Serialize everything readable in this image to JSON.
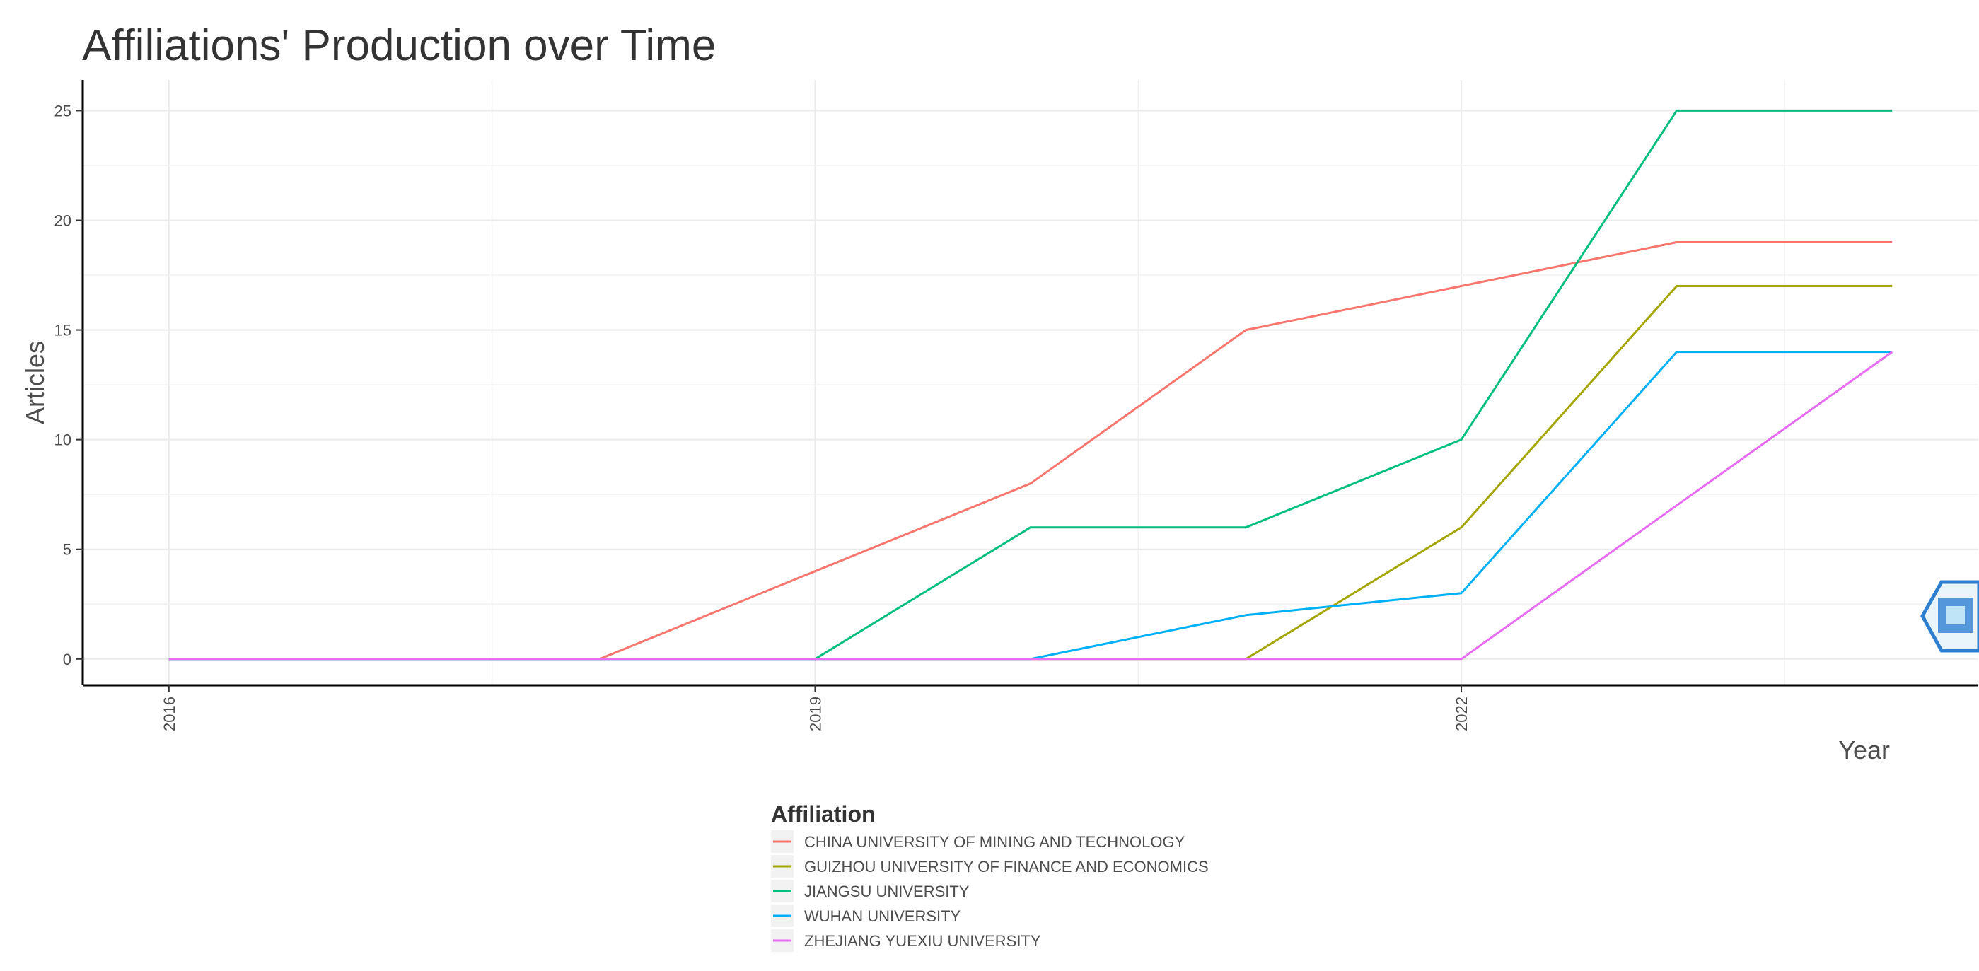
{
  "chart_data": {
    "type": "line",
    "title": "Affiliations' Production over Time",
    "xlabel": "Year",
    "ylabel": "Articles",
    "x": [
      2016,
      2017,
      2018,
      2019,
      2020,
      2021,
      2022,
      2023,
      2024
    ],
    "x_ticks": [
      "2016",
      "2019",
      "2022"
    ],
    "y_ticks": [
      "0",
      "5",
      "10",
      "15",
      "20",
      "25"
    ],
    "xlim": [
      2015.6,
      2024.4
    ],
    "ylim": [
      -1.2,
      26.4
    ],
    "grid": true,
    "legend_placement": "bottom",
    "legend_title": "Affiliation",
    "series": [
      {
        "name": "CHINA UNIVERSITY OF MINING AND TECHNOLOGY",
        "color": "#F8766D",
        "values": [
          0,
          0,
          0,
          4,
          8,
          15,
          17,
          19,
          19
        ]
      },
      {
        "name": "GUIZHOU UNIVERSITY OF FINANCE AND ECONOMICS",
        "color": "#A3A500",
        "values": [
          0,
          0,
          0,
          0,
          0,
          0,
          6,
          17,
          17
        ]
      },
      {
        "name": "JIANGSU UNIVERSITY",
        "color": "#00BF7D",
        "values": [
          0,
          0,
          0,
          0,
          6,
          6,
          10,
          25,
          25
        ]
      },
      {
        "name": "WUHAN UNIVERSITY",
        "color": "#00B0F6",
        "values": [
          0,
          0,
          0,
          0,
          0,
          2,
          3,
          14,
          14
        ]
      },
      {
        "name": "ZHEJIANG YUEXIU UNIVERSITY",
        "color": "#E76BF3",
        "values": [
          0,
          0,
          0,
          0,
          0,
          0,
          0,
          7,
          14
        ]
      }
    ]
  }
}
